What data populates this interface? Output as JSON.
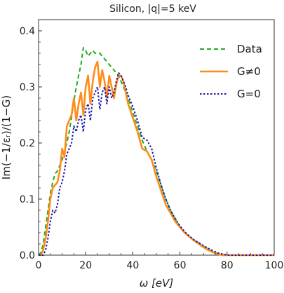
{
  "chart_data": {
    "type": "line",
    "title": "Silicon,  |q|=5 keV",
    "xlabel": "ω  [eV]",
    "ylabel": "Im(−1/εᵣ)/(1−G)",
    "xlim": [
      0,
      100
    ],
    "ylim": [
      0,
      0.42
    ],
    "x_ticks": [
      0,
      20,
      40,
      60,
      80,
      100
    ],
    "x_tick_labels": [
      "0",
      "20",
      "40",
      "60",
      "80",
      "100"
    ],
    "y_ticks": [
      0.0,
      0.1,
      0.2,
      0.3,
      0.4
    ],
    "y_tick_labels": [
      "0.0",
      "0.1",
      "0.2",
      "0.3",
      "0.4"
    ],
    "legend_position": "top-right",
    "grid": false,
    "series": [
      {
        "name": "Data",
        "color": "#22aa22",
        "style": "dashed",
        "points": [
          [
            0,
            0.0
          ],
          [
            1,
            0.005
          ],
          [
            2,
            0.02
          ],
          [
            3,
            0.05
          ],
          [
            4,
            0.08
          ],
          [
            5,
            0.11
          ],
          [
            6,
            0.13
          ],
          [
            7,
            0.145
          ],
          [
            8,
            0.15
          ],
          [
            9,
            0.16
          ],
          [
            10,
            0.17
          ],
          [
            11,
            0.185
          ],
          [
            12,
            0.2
          ],
          [
            13,
            0.22
          ],
          [
            14,
            0.245
          ],
          [
            15,
            0.275
          ],
          [
            16,
            0.3
          ],
          [
            17,
            0.32
          ],
          [
            18,
            0.34
          ],
          [
            19,
            0.37
          ],
          [
            20,
            0.365
          ],
          [
            21,
            0.355
          ],
          [
            22,
            0.36
          ],
          [
            23,
            0.365
          ],
          [
            24,
            0.36
          ],
          [
            25,
            0.36
          ],
          [
            26,
            0.36
          ],
          [
            27,
            0.355
          ],
          [
            28,
            0.35
          ],
          [
            29,
            0.345
          ],
          [
            30,
            0.34
          ],
          [
            32,
            0.33
          ],
          [
            34,
            0.32
          ],
          [
            36,
            0.3
          ],
          [
            38,
            0.28
          ],
          [
            40,
            0.255
          ],
          [
            42,
            0.23
          ],
          [
            44,
            0.205
          ],
          [
            46,
            0.185
          ],
          [
            48,
            0.17
          ],
          [
            50,
            0.15
          ],
          [
            52,
            0.125
          ],
          [
            54,
            0.1
          ],
          [
            56,
            0.08
          ],
          [
            58,
            0.065
          ],
          [
            60,
            0.05
          ],
          [
            62,
            0.04
          ],
          [
            64,
            0.033
          ],
          [
            66,
            0.027
          ],
          [
            68,
            0.022
          ],
          [
            70,
            0.016
          ],
          [
            72,
            0.011
          ],
          [
            74,
            0.006
          ],
          [
            76,
            0.003
          ],
          [
            78,
            0.001
          ],
          [
            80,
            0.0
          ],
          [
            100,
            0.0
          ]
        ]
      },
      {
        "name": "G≠0",
        "color": "#ff8c1a",
        "style": "solid",
        "points": [
          [
            0,
            0.0
          ],
          [
            1,
            0.0
          ],
          [
            2,
            0.01
          ],
          [
            3,
            0.03
          ],
          [
            4,
            0.06
          ],
          [
            5,
            0.1
          ],
          [
            6,
            0.12
          ],
          [
            7,
            0.125
          ],
          [
            8,
            0.13
          ],
          [
            9,
            0.15
          ],
          [
            10,
            0.19
          ],
          [
            11,
            0.175
          ],
          [
            12,
            0.23
          ],
          [
            13,
            0.24
          ],
          [
            14,
            0.25
          ],
          [
            15,
            0.28
          ],
          [
            16,
            0.24
          ],
          [
            17,
            0.27
          ],
          [
            18,
            0.29
          ],
          [
            19,
            0.25
          ],
          [
            20,
            0.3
          ],
          [
            21,
            0.32
          ],
          [
            22,
            0.27
          ],
          [
            23,
            0.31
          ],
          [
            24,
            0.335
          ],
          [
            25,
            0.345
          ],
          [
            26,
            0.3
          ],
          [
            27,
            0.33
          ],
          [
            28,
            0.31
          ],
          [
            29,
            0.28
          ],
          [
            30,
            0.32
          ],
          [
            31,
            0.3
          ],
          [
            32,
            0.28
          ],
          [
            33,
            0.305
          ],
          [
            34,
            0.32
          ],
          [
            35,
            0.32
          ],
          [
            36,
            0.31
          ],
          [
            37,
            0.29
          ],
          [
            38,
            0.27
          ],
          [
            40,
            0.245
          ],
          [
            42,
            0.22
          ],
          [
            44,
            0.19
          ],
          [
            46,
            0.185
          ],
          [
            48,
            0.17
          ],
          [
            50,
            0.14
          ],
          [
            52,
            0.115
          ],
          [
            54,
            0.09
          ],
          [
            56,
            0.075
          ],
          [
            58,
            0.06
          ],
          [
            60,
            0.05
          ],
          [
            62,
            0.04
          ],
          [
            64,
            0.033
          ],
          [
            66,
            0.026
          ],
          [
            68,
            0.02
          ],
          [
            70,
            0.014
          ],
          [
            72,
            0.009
          ],
          [
            74,
            0.005
          ],
          [
            76,
            0.002
          ],
          [
            78,
            0.0
          ],
          [
            100,
            0.0
          ]
        ]
      },
      {
        "name": "G=0",
        "color": "#1a1aaa",
        "style": "dotted",
        "points": [
          [
            0,
            0.0
          ],
          [
            2,
            0.0
          ],
          [
            3,
            0.01
          ],
          [
            4,
            0.03
          ],
          [
            5,
            0.06
          ],
          [
            6,
            0.08
          ],
          [
            7,
            0.075
          ],
          [
            8,
            0.09
          ],
          [
            9,
            0.12
          ],
          [
            10,
            0.13
          ],
          [
            11,
            0.15
          ],
          [
            12,
            0.18
          ],
          [
            13,
            0.19
          ],
          [
            14,
            0.2
          ],
          [
            15,
            0.23
          ],
          [
            16,
            0.22
          ],
          [
            17,
            0.24
          ],
          [
            18,
            0.25
          ],
          [
            19,
            0.22
          ],
          [
            20,
            0.26
          ],
          [
            21,
            0.27
          ],
          [
            22,
            0.24
          ],
          [
            23,
            0.28
          ],
          [
            24,
            0.29
          ],
          [
            25,
            0.3
          ],
          [
            26,
            0.26
          ],
          [
            27,
            0.29
          ],
          [
            28,
            0.3
          ],
          [
            29,
            0.27
          ],
          [
            30,
            0.3
          ],
          [
            31,
            0.28
          ],
          [
            32,
            0.29
          ],
          [
            33,
            0.31
          ],
          [
            34,
            0.325
          ],
          [
            35,
            0.32
          ],
          [
            36,
            0.31
          ],
          [
            37,
            0.3
          ],
          [
            38,
            0.285
          ],
          [
            40,
            0.265
          ],
          [
            42,
            0.24
          ],
          [
            44,
            0.21
          ],
          [
            46,
            0.205
          ],
          [
            48,
            0.19
          ],
          [
            50,
            0.155
          ],
          [
            52,
            0.125
          ],
          [
            54,
            0.1
          ],
          [
            56,
            0.08
          ],
          [
            58,
            0.065
          ],
          [
            60,
            0.052
          ],
          [
            62,
            0.042
          ],
          [
            64,
            0.034
          ],
          [
            66,
            0.027
          ],
          [
            68,
            0.022
          ],
          [
            70,
            0.017
          ],
          [
            72,
            0.012
          ],
          [
            74,
            0.008
          ],
          [
            76,
            0.004
          ],
          [
            78,
            0.002
          ],
          [
            80,
            0.0
          ],
          [
            100,
            0.0
          ]
        ]
      }
    ]
  }
}
